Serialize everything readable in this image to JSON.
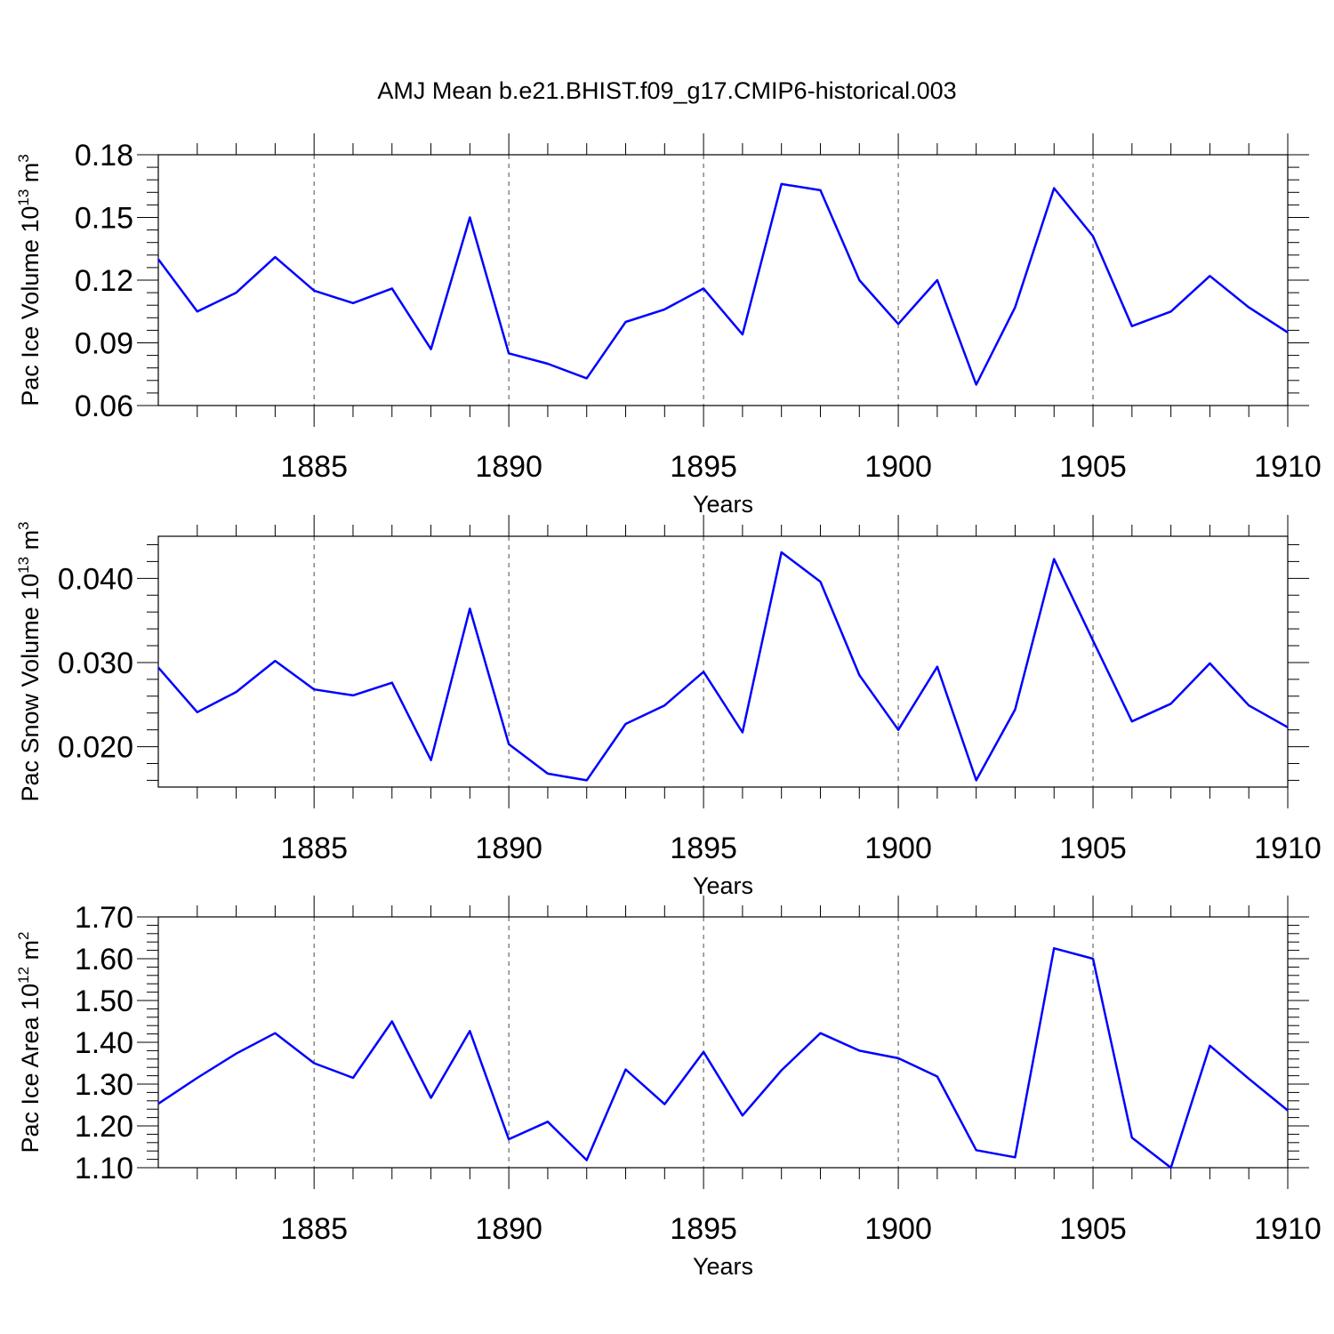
{
  "title": "AMJ Mean b.e21.BHIST.f09_g17.CMIP6-historical.003",
  "colors": {
    "line": "#0000ff",
    "axis": "#000000",
    "grid": "#000000"
  },
  "chart_data": [
    {
      "type": "line",
      "xlabel": "Years",
      "ylabel": {
        "main": "Pac Ice Volume 10",
        "sup": "13",
        "unit": " m",
        "unit_sup": "3"
      },
      "xlim": [
        1881,
        1910
      ],
      "ylim": [
        0.06,
        0.18
      ],
      "yticks": [
        0.06,
        0.09,
        0.12,
        0.15,
        0.18
      ],
      "ytick_labels": [
        "0.06",
        "0.09",
        "0.12",
        "0.15",
        "0.18"
      ],
      "xticks": [
        1885,
        1890,
        1895,
        1900,
        1905,
        1910
      ],
      "xtick_labels": [
        "1885",
        "1890",
        "1895",
        "1900",
        "1905",
        "1910"
      ],
      "grid": "vertical dashed at major x ticks",
      "x": [
        1881,
        1882,
        1883,
        1884,
        1885,
        1886,
        1887,
        1888,
        1889,
        1890,
        1891,
        1892,
        1893,
        1894,
        1895,
        1896,
        1897,
        1898,
        1899,
        1900,
        1901,
        1902,
        1903,
        1904,
        1905,
        1906,
        1907,
        1908,
        1909,
        1910
      ],
      "values": [
        0.13,
        0.105,
        0.114,
        0.131,
        0.115,
        0.109,
        0.116,
        0.087,
        0.15,
        0.085,
        0.08,
        0.073,
        0.1,
        0.106,
        0.116,
        0.094,
        0.166,
        0.163,
        0.12,
        0.099,
        0.12,
        0.07,
        0.107,
        0.164,
        0.141,
        0.098,
        0.105,
        0.122,
        0.107,
        0.095
      ]
    },
    {
      "type": "line",
      "xlabel": "Years",
      "ylabel": {
        "main": "Pac Snow Volume 10",
        "sup": "13",
        "unit": " m",
        "unit_sup": "3"
      },
      "xlim": [
        1881,
        1910
      ],
      "ylim": [
        0.0152,
        0.045
      ],
      "yticks": [
        0.02,
        0.03,
        0.04
      ],
      "ytick_labels": [
        "0.020",
        "0.030",
        "0.040"
      ],
      "xticks": [
        1885,
        1890,
        1895,
        1900,
        1905,
        1910
      ],
      "xtick_labels": [
        "1885",
        "1890",
        "1895",
        "1900",
        "1905",
        "1910"
      ],
      "grid": "vertical dashed at major x ticks",
      "x": [
        1881,
        1882,
        1883,
        1884,
        1885,
        1886,
        1887,
        1888,
        1889,
        1890,
        1891,
        1892,
        1893,
        1894,
        1895,
        1896,
        1897,
        1898,
        1899,
        1900,
        1901,
        1902,
        1903,
        1904,
        1905,
        1906,
        1907,
        1908,
        1909,
        1910
      ],
      "values": [
        0.0294,
        0.0241,
        0.0265,
        0.0302,
        0.0268,
        0.0261,
        0.0276,
        0.0184,
        0.0364,
        0.0203,
        0.0168,
        0.016,
        0.0227,
        0.0249,
        0.0289,
        0.0217,
        0.0431,
        0.0396,
        0.0285,
        0.022,
        0.0295,
        0.016,
        0.0244,
        0.0423,
        0.0326,
        0.023,
        0.0251,
        0.0299,
        0.0249,
        0.0223
      ]
    },
    {
      "type": "line",
      "xlabel": "Years",
      "ylabel": {
        "main": "Pac Ice Area 10",
        "sup": "12",
        "unit": " m",
        "unit_sup": "2"
      },
      "xlim": [
        1881,
        1910
      ],
      "ylim": [
        1.1,
        1.7
      ],
      "yticks": [
        1.1,
        1.2,
        1.3,
        1.4,
        1.5,
        1.6,
        1.7
      ],
      "ytick_labels": [
        "1.10",
        "1.20",
        "1.30",
        "1.40",
        "1.50",
        "1.60",
        "1.70"
      ],
      "xticks": [
        1885,
        1890,
        1895,
        1900,
        1905,
        1910
      ],
      "xtick_labels": [
        "1885",
        "1890",
        "1895",
        "1900",
        "1905",
        "1910"
      ],
      "grid": "vertical dashed at major x ticks",
      "x": [
        1881,
        1882,
        1883,
        1884,
        1885,
        1886,
        1887,
        1888,
        1889,
        1890,
        1891,
        1892,
        1893,
        1894,
        1895,
        1896,
        1897,
        1898,
        1899,
        1900,
        1901,
        1902,
        1903,
        1904,
        1905,
        1906,
        1907,
        1908,
        1909,
        1910
      ],
      "values": [
        1.253,
        1.315,
        1.373,
        1.422,
        1.35,
        1.315,
        1.45,
        1.267,
        1.427,
        1.168,
        1.21,
        1.118,
        1.335,
        1.252,
        1.377,
        1.225,
        1.333,
        1.422,
        1.38,
        1.362,
        1.318,
        1.142,
        1.125,
        1.625,
        1.6,
        1.172,
        1.1,
        1.392,
        1.313,
        1.237
      ]
    }
  ]
}
